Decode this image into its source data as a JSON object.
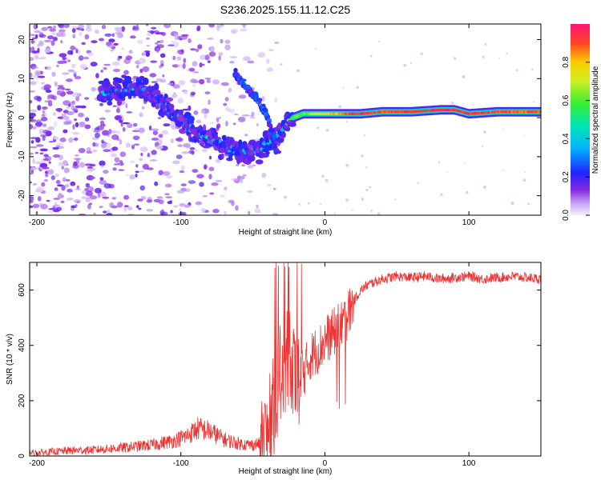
{
  "title": "S236.2025.155.11.12.C25",
  "chart_data": [
    {
      "type": "heatmap",
      "xlabel": "Height of straight line (km)",
      "ylabel": "Frequency (Hz)",
      "xlim": [
        -205,
        150
      ],
      "ylim": [
        -25,
        24
      ],
      "xticks": [
        "-200",
        "-100",
        "0",
        "100"
      ],
      "xtick_values": [
        -200,
        -100,
        0,
        100
      ],
      "yticks": [
        "-20",
        "-10",
        "0",
        "10",
        "20"
      ],
      "ytick_values": [
        -20,
        -10,
        0,
        10,
        20
      ],
      "colorbar": {
        "label": "Normalized spectral amplitude",
        "range": [
          0,
          1
        ],
        "ticks": [
          "0.0",
          "0.2",
          "0.4",
          "0.6",
          "0.8"
        ],
        "tick_values": [
          0.0,
          0.2,
          0.4,
          0.6,
          0.8
        ]
      },
      "ridge": {
        "x": [
          -155,
          -145,
          -135,
          -125,
          -115,
          -105,
          -95,
          -85,
          -75,
          -65,
          -55,
          -45,
          -35,
          -28,
          -22,
          -15,
          -5,
          5,
          15,
          25,
          40,
          60,
          80,
          90,
          100,
          120,
          150
        ],
        "freq": [
          6,
          7,
          8,
          7,
          4,
          1,
          -2,
          -5,
          -6,
          -8,
          -9,
          -8,
          -6,
          -2,
          0,
          1,
          1,
          1,
          1,
          1,
          1.5,
          1.5,
          2,
          2,
          1,
          1.5,
          1.5
        ],
        "amplitude": [
          0.3,
          0.3,
          0.35,
          0.3,
          0.3,
          0.35,
          0.35,
          0.35,
          0.3,
          0.3,
          0.3,
          0.3,
          0.35,
          0.35,
          0.6,
          0.6,
          0.7,
          0.8,
          0.9,
          0.95,
          0.9,
          0.95,
          0.95,
          0.95,
          0.95,
          0.9,
          0.9
        ]
      },
      "secondary_branch": {
        "x": [
          -62,
          -55,
          -48,
          -42,
          -38,
          -35,
          -33
        ],
        "freq": [
          11,
          8,
          5,
          2,
          -2,
          -6,
          -10
        ]
      }
    },
    {
      "type": "line",
      "xlabel": "Height of straight line (km)",
      "ylabel": "SNR (10 * v/v)",
      "xlim": [
        -205,
        150
      ],
      "ylim": [
        0,
        700
      ],
      "xticks": [
        "-200",
        "-100",
        "0",
        "100"
      ],
      "xtick_values": [
        -200,
        -100,
        0,
        100
      ],
      "yticks": [
        "0",
        "200",
        "400",
        "600"
      ],
      "ytick_values": [
        0,
        200,
        400,
        600
      ],
      "color": "#ee3333",
      "x": [
        -205,
        -190,
        -175,
        -160,
        -140,
        -120,
        -105,
        -95,
        -88,
        -80,
        -70,
        -60,
        -52,
        -45,
        -40,
        -37,
        -34,
        -30,
        -26,
        -22,
        -18,
        -14,
        -10,
        -6,
        -2,
        0,
        5,
        10,
        15,
        20,
        25,
        30,
        40,
        50,
        60,
        70,
        80,
        90,
        100,
        110,
        120,
        130,
        140,
        150
      ],
      "y": [
        10,
        15,
        20,
        22,
        30,
        40,
        55,
        75,
        100,
        90,
        60,
        45,
        40,
        45,
        60,
        140,
        220,
        320,
        330,
        300,
        290,
        310,
        360,
        380,
        400,
        420,
        440,
        470,
        500,
        560,
        600,
        620,
        640,
        650,
        645,
        650,
        640,
        645,
        650,
        640,
        645,
        650,
        645,
        640
      ]
    }
  ]
}
